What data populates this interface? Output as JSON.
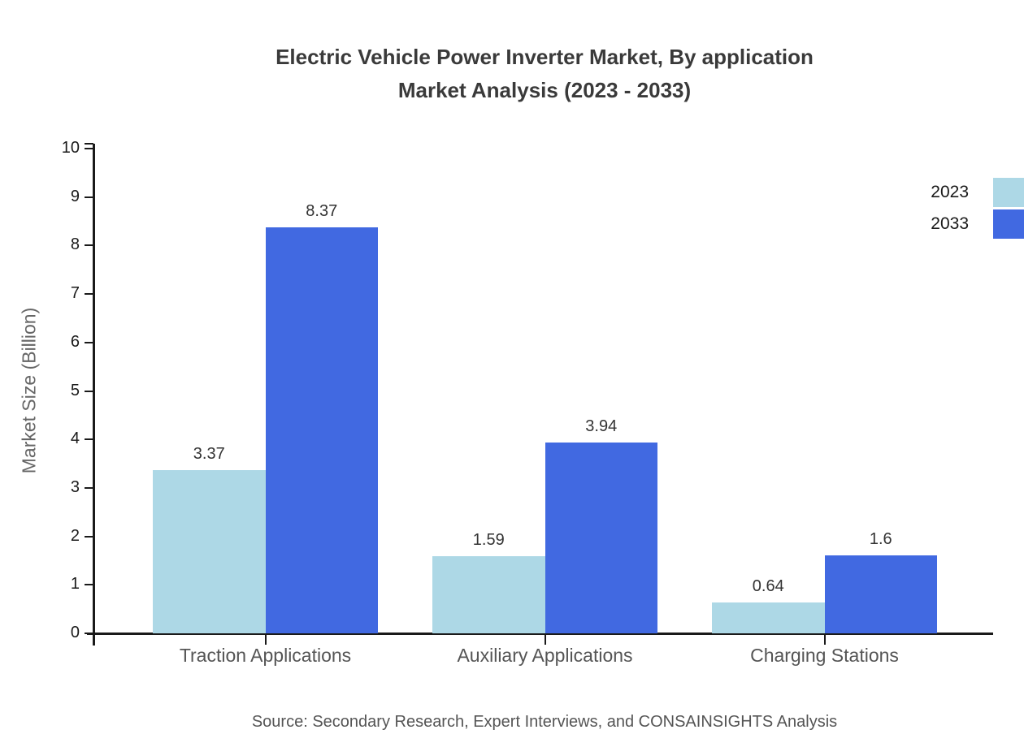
{
  "title": {
    "line1": "Electric Vehicle Power Inverter Market, By application",
    "line2": "Market Analysis (2023 - 2033)"
  },
  "source": "Source: Secondary Research, Expert Interviews, and CONSAINSIGHTS Analysis",
  "colors": {
    "series_2023": "#ADD8E6",
    "series_2033": "#4169E1",
    "axis": "#1a1a1a",
    "title_text": "#3a3a3a",
    "category_text": "#555555",
    "value_text": "#333333",
    "ylabel_text": "#666666"
  },
  "chart_data": {
    "type": "bar",
    "title": "Electric Vehicle Power Inverter Market, By application Market Analysis (2023 - 2033)",
    "categories": [
      "Traction Applications",
      "Auxiliary Applications",
      "Charging Stations"
    ],
    "series": [
      {
        "name": "2023",
        "color": "#ADD8E6",
        "values": [
          3.37,
          1.59,
          0.64
        ]
      },
      {
        "name": "2033",
        "color": "#4169E1",
        "values": [
          8.37,
          3.94,
          1.6
        ]
      }
    ],
    "xlabel": "",
    "ylabel": "Market Size (Billion)",
    "ylim": [
      0,
      10
    ],
    "ytick_step": 1,
    "grid": false,
    "legend_position": "top-right"
  }
}
